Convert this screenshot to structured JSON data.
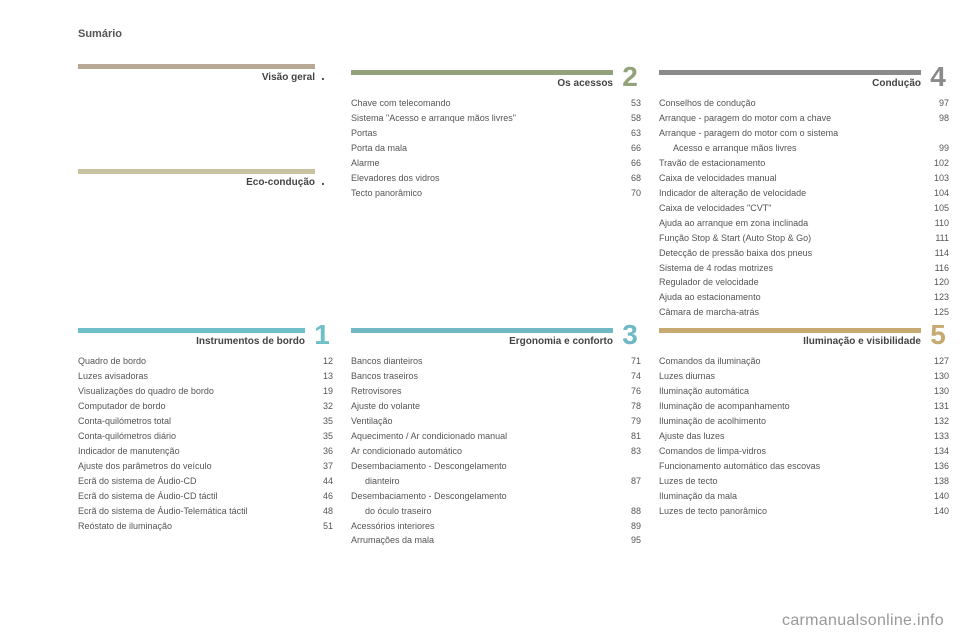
{
  "page_title": "Sumário",
  "footer": "carmanualsonline.info",
  "colors": {
    "visao": "#b8a995",
    "eco": "#c7c3a0",
    "instrumentos": "#6fbfc9",
    "acessos": "#93a27a",
    "ergonomia": "#6fb8c4",
    "conducao": "#8a8a8a",
    "iluminacao": "#c7a972"
  },
  "sections": {
    "visao": {
      "title": "Visão geral",
      "mark": "."
    },
    "eco": {
      "title": "Eco-condução",
      "mark": "."
    },
    "instrumentos": {
      "title": "Instrumentos de bordo",
      "num": "1",
      "entries": [
        {
          "label": "Quadro de bordo",
          "pg": "12"
        },
        {
          "label": "Luzes avisadoras",
          "pg": "13"
        },
        {
          "label": "Visualizações do quadro de bordo",
          "pg": "19"
        },
        {
          "label": "Computador de bordo",
          "pg": "32"
        },
        {
          "label": "Conta-quilómetros total",
          "pg": "35"
        },
        {
          "label": "Conta-quilómetros diário",
          "pg": "35"
        },
        {
          "label": "Indicador de manutenção",
          "pg": "36"
        },
        {
          "label": "Ajuste dos parâmetros do veículo",
          "pg": "37"
        },
        {
          "label": "Ecrã do sistema de Áudio-CD",
          "pg": "44"
        },
        {
          "label": "Ecrã do sistema de Áudio-CD táctil",
          "pg": "46"
        },
        {
          "label": "Ecrã do sistema de Áudio-Telemática táctil",
          "pg": "48"
        },
        {
          "label": "Reóstato de iluminação",
          "pg": "51"
        }
      ]
    },
    "acessos": {
      "title": "Os acessos",
      "num": "2",
      "entries": [
        {
          "label": "Chave com telecomando",
          "pg": "53"
        },
        {
          "label": "Sistema \"Acesso e arranque mãos livres\"",
          "pg": "58"
        },
        {
          "label": "Portas",
          "pg": "63"
        },
        {
          "label": "Porta da mala",
          "pg": "66"
        },
        {
          "label": "Alarme",
          "pg": "66"
        },
        {
          "label": "Elevadores dos vidros",
          "pg": "68"
        },
        {
          "label": "Tecto panorâmico",
          "pg": "70"
        }
      ]
    },
    "ergonomia": {
      "title": "Ergonomia e conforto",
      "num": "3",
      "entries": [
        {
          "label": "Bancos dianteiros",
          "pg": "71"
        },
        {
          "label": "Bancos traseiros",
          "pg": "74"
        },
        {
          "label": "Retrovisores",
          "pg": "76"
        },
        {
          "label": "Ajuste do volante",
          "pg": "78"
        },
        {
          "label": "Ventilação",
          "pg": "79"
        },
        {
          "label": "Aquecimento / Ar condicionado manual",
          "pg": "81"
        },
        {
          "label": "Ar condicionado automático",
          "pg": "83"
        },
        {
          "label": "Desembaciamento - Descongelamento",
          "pg": ""
        },
        {
          "label": "dianteiro",
          "pg": "87",
          "indent": true
        },
        {
          "label": "Desembaciamento - Descongelamento",
          "pg": ""
        },
        {
          "label": "do óculo traseiro",
          "pg": "88",
          "indent": true
        },
        {
          "label": "Acessórios interiores",
          "pg": "89"
        },
        {
          "label": "Arrumações da mala",
          "pg": "95"
        }
      ]
    },
    "conducao": {
      "title": "Condução",
      "num": "4",
      "entries": [
        {
          "label": "Conselhos de condução",
          "pg": "97"
        },
        {
          "label": "Arranque - paragem do motor com a chave",
          "pg": "98"
        },
        {
          "label": "Arranque - paragem do motor com o sistema",
          "pg": ""
        },
        {
          "label": "Acesso e arranque mãos livres",
          "pg": "99",
          "indent": true
        },
        {
          "label": "Travão de estacionamento",
          "pg": "102"
        },
        {
          "label": "Caixa de velocidades manual",
          "pg": "103"
        },
        {
          "label": "Indicador de alteração de velocidade",
          "pg": "104"
        },
        {
          "label": "Caixa de velocidades \"CVT\"",
          "pg": "105"
        },
        {
          "label": "Ajuda ao arranque em zona inclinada",
          "pg": "110"
        },
        {
          "label": "Função Stop & Start (Auto Stop & Go)",
          "pg": "111"
        },
        {
          "label": "Detecção de pressão baixa dos pneus",
          "pg": "114"
        },
        {
          "label": "Sistema de 4 rodas motrizes",
          "pg": "116"
        },
        {
          "label": "Regulador de velocidade",
          "pg": "120"
        },
        {
          "label": "Ajuda ao estacionamento",
          "pg": "123"
        },
        {
          "label": "Câmara de marcha-atrás",
          "pg": "125"
        }
      ]
    },
    "iluminacao": {
      "title": "Iluminação e visibilidade",
      "num": "5",
      "entries": [
        {
          "label": "Comandos da iluminação",
          "pg": "127"
        },
        {
          "label": "Luzes diurnas",
          "pg": "130"
        },
        {
          "label": "Iluminação automática",
          "pg": "130"
        },
        {
          "label": "Iluminação de acompanhamento",
          "pg": "131"
        },
        {
          "label": "Iluminação de acolhimento",
          "pg": "132"
        },
        {
          "label": "Ajuste das luzes",
          "pg": "133"
        },
        {
          "label": "Comandos de limpa-vidros",
          "pg": "134"
        },
        {
          "label": "Funcionamento automático das escovas",
          "pg": "136"
        },
        {
          "label": "Luzes de tecto",
          "pg": "138"
        },
        {
          "label": "Iluminação da mala",
          "pg": "140"
        },
        {
          "label": "Luzes de tecto panorâmico",
          "pg": "140"
        }
      ]
    }
  }
}
